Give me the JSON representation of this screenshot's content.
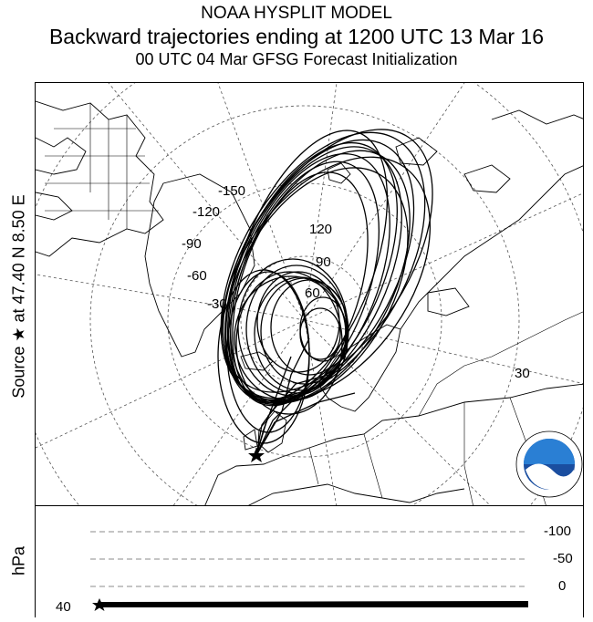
{
  "header": {
    "line1": "NOAA HYSPLIT MODEL",
    "line2": "Backward trajectories ending at 1200 UTC 13 Mar 16",
    "line3": "00 UTC 04 Mar    GFSG  Forecast Initialization"
  },
  "side_label": "Source ★ at  47.40 N  8.50 E",
  "map": {
    "longitude_labels": [
      "-150",
      "-120",
      "-90",
      "-60",
      "-30",
      "120",
      "90",
      "60",
      "30"
    ],
    "source_marker": "star",
    "trajectory_color": "#000000",
    "logo_text": "noaa"
  },
  "altitude_panel": {
    "unit_label": "hPa",
    "tick_labels": [
      "-100",
      "-50",
      "0"
    ],
    "start_label": "40",
    "marker": "star"
  }
}
